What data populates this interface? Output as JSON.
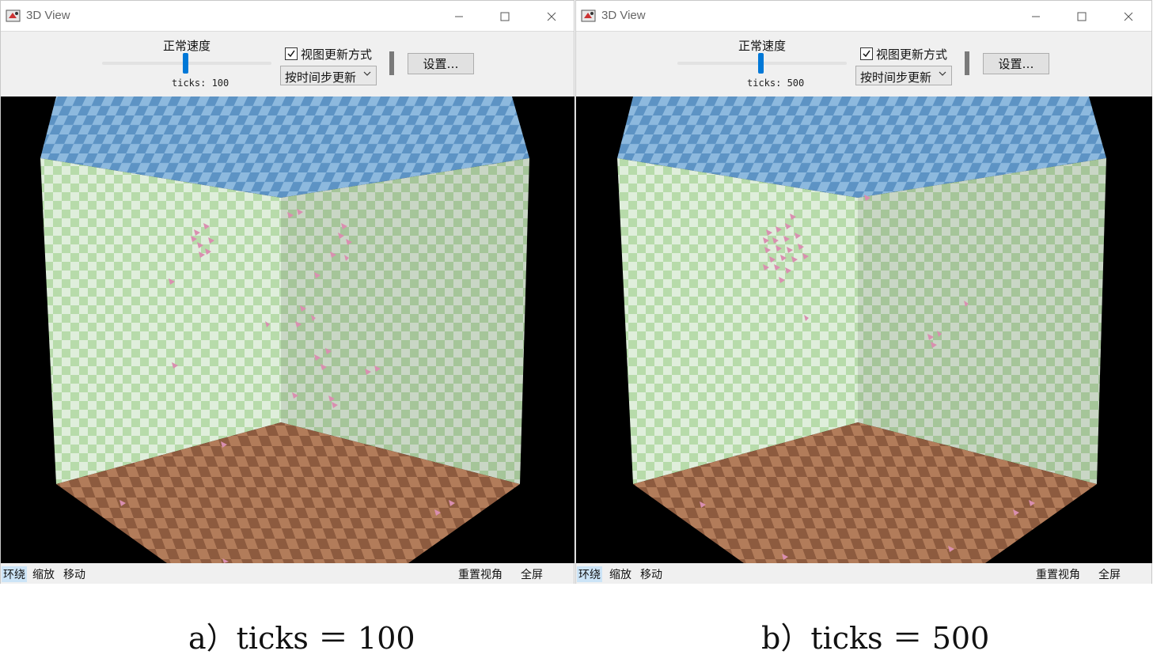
{
  "windows": [
    {
      "title": "3D View",
      "speed_label": "正常速度",
      "ticks_label": "ticks: 100",
      "ticks": 100,
      "checkbox_label": "视图更新方式",
      "checkbox_checked": true,
      "dropdown_value": "按时间步更新",
      "settings_button": "设置…",
      "status_items": [
        "环绕",
        "缩放",
        "移动"
      ],
      "status_right": [
        "重置视角",
        "全屏"
      ],
      "active_status": "环绕",
      "caption": "a）ticks ＝ 100"
    },
    {
      "title": "3D View",
      "speed_label": "正常速度",
      "ticks_label": "ticks: 500",
      "ticks": 500,
      "checkbox_label": "视图更新方式",
      "checkbox_checked": true,
      "dropdown_value": "按时间步更新",
      "settings_button": "设置…",
      "status_items": [
        "环绕",
        "缩放",
        "移动"
      ],
      "status_right": [
        "重置视角",
        "全屏"
      ],
      "active_status": "环绕",
      "caption": "b）ticks ＝ 500"
    }
  ],
  "icons": {
    "minimize": "minimize-icon",
    "maximize": "maximize-icon",
    "close": "close-icon",
    "app": "netlogo-3d-icon",
    "checkbox": "checkmark-icon",
    "dropdown": "chevron-down-icon"
  },
  "colors": {
    "wall": "#b7dbaa",
    "wall_light": "#dfeedb",
    "ceiling": "#6ea2cf",
    "floor": "#a0694a",
    "agent": "#d98fb0",
    "viewport_bg": "#000000",
    "slider_thumb": "#0078d7"
  }
}
